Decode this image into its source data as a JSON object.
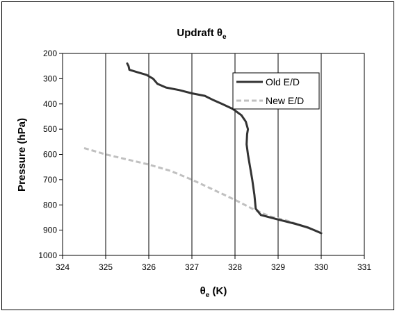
{
  "chart_data": {
    "type": "line",
    "title": {
      "main": "Updraft θ",
      "sub": "e"
    },
    "xlabel": {
      "main": "θ",
      "sub": "e",
      "rest": " (K)"
    },
    "ylabel": "Pressure (hPa)",
    "xlim": [
      324,
      331
    ],
    "ylim": [
      200,
      1000
    ],
    "y_inverted": true,
    "x_ticks": [
      "324",
      "325",
      "326",
      "327",
      "328",
      "329",
      "330",
      "331"
    ],
    "y_ticks": [
      "200",
      "300",
      "400",
      "500",
      "600",
      "700",
      "800",
      "900",
      "1000"
    ],
    "grid": "vertical lines at x ticks",
    "legend_position": "top-right",
    "series": [
      {
        "name": "Old E/D",
        "color": "#333333",
        "style": "solid",
        "points": [
          [
            325.5,
            240
          ],
          [
            325.53,
            250
          ],
          [
            325.55,
            265
          ],
          [
            325.75,
            275
          ],
          [
            325.95,
            285
          ],
          [
            326.1,
            300
          ],
          [
            326.2,
            320
          ],
          [
            326.4,
            335
          ],
          [
            326.7,
            345
          ],
          [
            327.0,
            358
          ],
          [
            327.3,
            368
          ],
          [
            327.5,
            385
          ],
          [
            327.7,
            400
          ],
          [
            327.95,
            420
          ],
          [
            328.15,
            445
          ],
          [
            328.25,
            470
          ],
          [
            328.3,
            500
          ],
          [
            328.28,
            520
          ],
          [
            328.27,
            560
          ],
          [
            328.3,
            600
          ],
          [
            328.35,
            650
          ],
          [
            328.4,
            700
          ],
          [
            328.45,
            760
          ],
          [
            328.48,
            815
          ],
          [
            328.6,
            840
          ],
          [
            329.0,
            858
          ],
          [
            329.4,
            875
          ],
          [
            329.7,
            890
          ],
          [
            330.0,
            912
          ]
        ]
      },
      {
        "name": "New E/D",
        "color": "#c0c0c0",
        "style": "dashed",
        "points": [
          [
            324.5,
            575
          ],
          [
            325.0,
            600
          ],
          [
            325.5,
            620
          ],
          [
            326.0,
            640
          ],
          [
            326.5,
            665
          ],
          [
            327.0,
            700
          ],
          [
            327.5,
            740
          ],
          [
            328.0,
            780
          ],
          [
            328.4,
            815
          ],
          [
            328.8,
            845
          ],
          [
            329.2,
            862
          ],
          [
            329.6,
            885
          ],
          [
            330.0,
            910
          ]
        ]
      }
    ]
  }
}
